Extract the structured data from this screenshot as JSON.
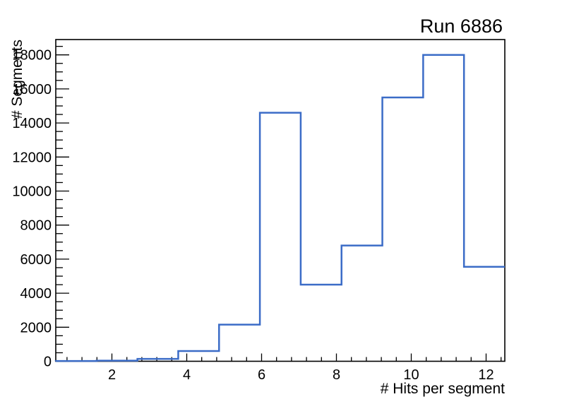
{
  "chart_data": {
    "type": "histogram",
    "style": "step-outline",
    "title": "Run 6886",
    "xlabel": "# Hits per segment",
    "ylabel": "# Segments",
    "xlim": [
      0.5,
      12.5
    ],
    "ylim": [
      0,
      18900
    ],
    "grid": false,
    "legend": false,
    "n_bins": 11,
    "bin_edges": [
      0.5,
      1.5909,
      2.6818,
      3.7727,
      4.8636,
      5.9545,
      7.0455,
      8.1364,
      9.2273,
      10.3182,
      11.4091,
      12.5
    ],
    "counts": [
      15,
      35,
      140,
      600,
      2150,
      14600,
      4500,
      6800,
      15500,
      18000,
      5550
    ],
    "x_ticks": [
      2,
      4,
      6,
      8,
      10,
      12
    ],
    "x_tick_labels": [
      "2",
      "4",
      "6",
      "8",
      "10",
      "12"
    ],
    "x_minor_start": 0.8,
    "x_minor_step": 0.4,
    "y_ticks": [
      0,
      2000,
      4000,
      6000,
      8000,
      10000,
      12000,
      14000,
      16000,
      18000
    ],
    "y_tick_labels": [
      "0",
      "2000",
      "4000",
      "6000",
      "8000",
      "10000",
      "12000",
      "14000",
      "16000",
      "18000"
    ],
    "y_minor_step": 500,
    "colors": {
      "line": "#3b6cc7",
      "frame": "#000000",
      "text": "#000000",
      "background": "#ffffff"
    }
  }
}
